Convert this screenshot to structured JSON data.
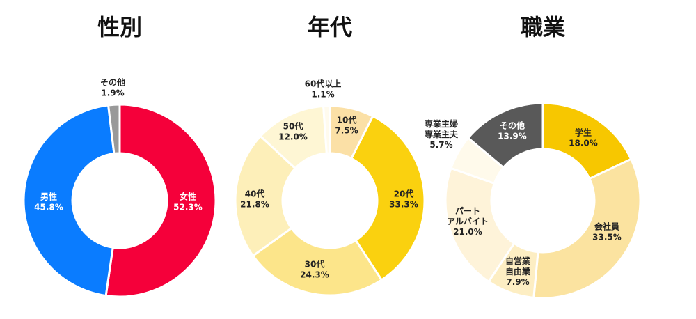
{
  "chart_data": [
    {
      "type": "pie",
      "title": "性別",
      "slices": [
        {
          "label": "女性",
          "value": 52.3,
          "value_label": "52.3%",
          "color": "#F5003A",
          "text_color": "#ffffff"
        },
        {
          "label": "男性",
          "value": 45.8,
          "value_label": "45.8%",
          "color": "#0A7CFF",
          "text_color": "#ffffff"
        },
        {
          "label": "その他",
          "value": 1.9,
          "value_label": "1.9%",
          "color": "#999999",
          "text_color": "#222222"
        }
      ]
    },
    {
      "type": "pie",
      "title": "年代",
      "slices": [
        {
          "label": "10代",
          "value": 7.5,
          "value_label": "7.5%",
          "color": "#FBE0A6",
          "text_color": "#222222"
        },
        {
          "label": "20代",
          "value": 33.3,
          "value_label": "33.3%",
          "color": "#FAD10F",
          "text_color": "#222222"
        },
        {
          "label": "30代",
          "value": 24.3,
          "value_label": "24.3%",
          "color": "#FCE58A",
          "text_color": "#222222"
        },
        {
          "label": "40代",
          "value": 21.8,
          "value_label": "21.8%",
          "color": "#FDEFB9",
          "text_color": "#222222"
        },
        {
          "label": "50代",
          "value": 12.0,
          "value_label": "12.0%",
          "color": "#FEF6D4",
          "text_color": "#222222"
        },
        {
          "label": "60代以上",
          "value": 1.1,
          "value_label": "1.1%",
          "color": "#FFFBEE",
          "text_color": "#222222"
        }
      ]
    },
    {
      "type": "pie",
      "title": "職業",
      "slices": [
        {
          "label": "学生",
          "value": 18.0,
          "value_label": "18.0%",
          "color": "#F7C700",
          "text_color": "#222222"
        },
        {
          "label": "会社員",
          "value": 33.5,
          "value_label": "33.5%",
          "color": "#FBE3A0",
          "text_color": "#222222"
        },
        {
          "label": "自営業\n自由業",
          "value": 7.9,
          "value_label": "7.9%",
          "color": "#FDEEC3",
          "text_color": "#222222"
        },
        {
          "label": "パート\nアルバイト",
          "value": 21.0,
          "value_label": "21.0%",
          "color": "#FEF3D9",
          "text_color": "#222222"
        },
        {
          "label": "専業主婦\n専業主夫",
          "value": 5.7,
          "value_label": "5.7%",
          "color": "#FFFAEB",
          "text_color": "#222222"
        },
        {
          "label": "その他",
          "value": 13.9,
          "value_label": "13.9%",
          "color": "#595959",
          "text_color": "#ffffff"
        }
      ]
    }
  ]
}
